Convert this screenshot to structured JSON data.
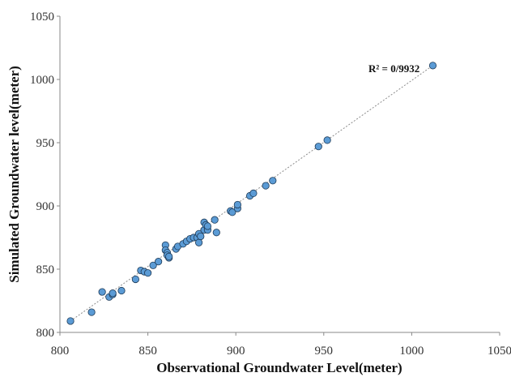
{
  "chart_data": {
    "type": "scatter",
    "title": "",
    "xlabel": "Observational Groundwater Level(meter)",
    "ylabel": "Simulated Groundwater level(meter)",
    "xlim": [
      800,
      1050
    ],
    "ylim": [
      800,
      1050
    ],
    "xticks": [
      "800",
      "850",
      "900",
      "950",
      "1000",
      "1050"
    ],
    "yticks": [
      "800",
      "850",
      "900",
      "950",
      "1000",
      "1050"
    ],
    "grid": false,
    "legend": "none",
    "annotation": "R² = 0/9932",
    "trendline": {
      "x": [
        806,
        1012
      ],
      "y": [
        809,
        1011
      ]
    },
    "point_color": "#5b9bd5",
    "point_edge_color": "#1f3b57",
    "trendline_color": "#8c8c8c",
    "series": [
      {
        "x": [
          806,
          818,
          824,
          828,
          830,
          830,
          835,
          843,
          846,
          848,
          850,
          853,
          856,
          860,
          860,
          861,
          861,
          862,
          862,
          866,
          867,
          870,
          872,
          874,
          876,
          878,
          879,
          879,
          880,
          882,
          882,
          883,
          884,
          884,
          888,
          889,
          897,
          898,
          901,
          901,
          908,
          910,
          917,
          921,
          947,
          952,
          1012
        ],
        "y": [
          809,
          816,
          832,
          828,
          830,
          831,
          833,
          842,
          849,
          848,
          847,
          853,
          856,
          869,
          865,
          863,
          861,
          859,
          860,
          866,
          868,
          870,
          872,
          874,
          875,
          875,
          878,
          871,
          876,
          881,
          887,
          885,
          881,
          884,
          889,
          879,
          896,
          895,
          898,
          901,
          908,
          910,
          916,
          920,
          947,
          952,
          1011
        ]
      }
    ]
  }
}
